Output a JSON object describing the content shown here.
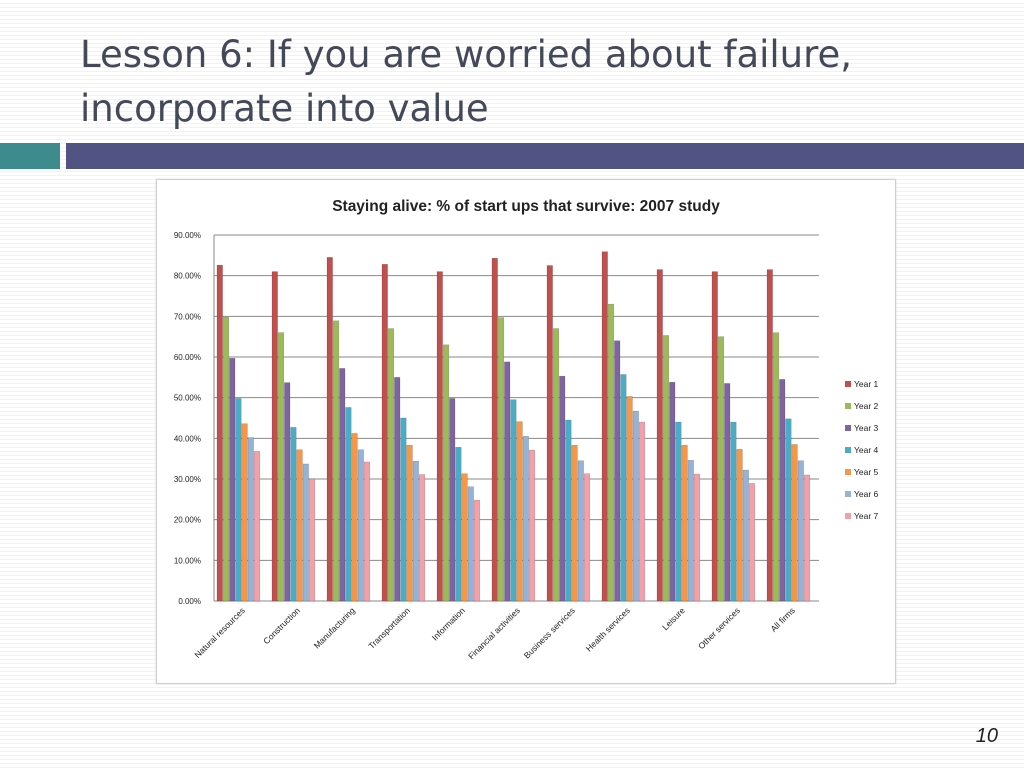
{
  "slide": {
    "title_line1": "Lesson 6: If you are worried about failure,",
    "title_line2": "incorporate into value",
    "page_number": "10"
  },
  "colors": {
    "accent_teal": "#3d8b8c",
    "accent_bar": "#515382",
    "series": [
      "#c0504d",
      "#9bbb59",
      "#8064a2",
      "#4bacc6",
      "#f79646",
      "#95b3d7",
      "#f4a0a8"
    ]
  },
  "chart_data": {
    "type": "bar",
    "title": "Staying alive: % of start ups that survive: 2007 study",
    "xlabel": "",
    "ylabel": "",
    "ylim": [
      0,
      90
    ],
    "y_ticks": [
      "0.00%",
      "10.00%",
      "20.00%",
      "30.00%",
      "40.00%",
      "50.00%",
      "60.00%",
      "70.00%",
      "80.00%",
      "90.00%"
    ],
    "grid": true,
    "legend_position": "right",
    "categories": [
      "Natural resources",
      "Construction",
      "Manufacturing",
      "Transportation",
      "Information",
      "Financial activities",
      "Business services",
      "Health services",
      "Leisure",
      "Other services",
      "All firms"
    ],
    "series": [
      {
        "name": "Year 1",
        "values": [
          82.6,
          81.0,
          84.5,
          82.8,
          81.0,
          84.3,
          82.5,
          85.9,
          81.5,
          81.0,
          81.5
        ]
      },
      {
        "name": "Year 2",
        "values": [
          69.8,
          66.0,
          68.9,
          67.0,
          63.0,
          69.7,
          67.0,
          73.0,
          65.3,
          65.0,
          66.0
        ]
      },
      {
        "name": "Year 3",
        "values": [
          59.7,
          53.7,
          57.2,
          55.0,
          49.8,
          58.8,
          55.3,
          64.0,
          53.8,
          53.5,
          54.5
        ]
      },
      {
        "name": "Year 4",
        "values": [
          49.8,
          42.7,
          47.6,
          45.0,
          37.8,
          49.5,
          44.5,
          55.7,
          44.0,
          44.0,
          44.8
        ]
      },
      {
        "name": "Year 5",
        "values": [
          43.6,
          37.2,
          41.2,
          38.3,
          31.3,
          44.1,
          38.3,
          50.3,
          38.3,
          37.3,
          38.5
        ]
      },
      {
        "name": "Year 6",
        "values": [
          40.2,
          33.7,
          37.2,
          34.4,
          28.1,
          40.5,
          34.5,
          46.7,
          34.6,
          32.2,
          34.5
        ]
      },
      {
        "name": "Year 7",
        "values": [
          36.8,
          30.0,
          34.2,
          31.1,
          24.8,
          37.1,
          31.3,
          44.0,
          31.2,
          28.9,
          31.0
        ]
      }
    ]
  }
}
